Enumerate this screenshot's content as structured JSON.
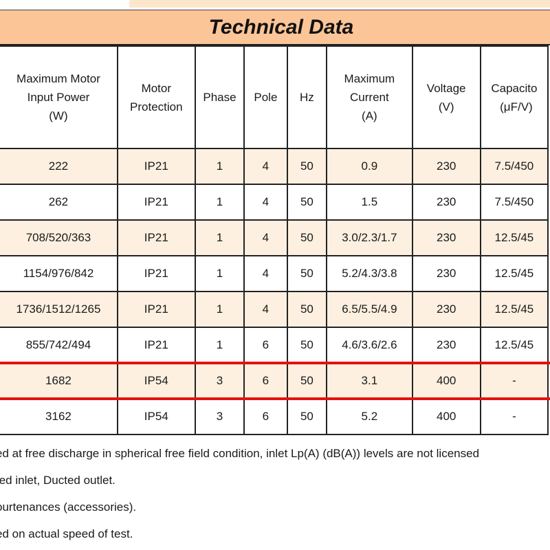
{
  "title": "Technical Data",
  "headers": [
    [
      "Maximum Motor",
      "Input Power",
      "(W)"
    ],
    [
      "Motor",
      "Protection"
    ],
    [
      "Phase"
    ],
    [
      "Pole"
    ],
    [
      "Hz"
    ],
    [
      "Maximum",
      "Current",
      "(A)"
    ],
    [
      "Voltage",
      "(V)"
    ],
    [
      "Capacito",
      "(μF/V)"
    ]
  ],
  "rows": [
    [
      "222",
      "IP21",
      "1",
      "4",
      "50",
      "0.9",
      "230",
      "7.5/450"
    ],
    [
      "262",
      "IP21",
      "1",
      "4",
      "50",
      "1.5",
      "230",
      "7.5/450"
    ],
    [
      "708/520/363",
      "IP21",
      "1",
      "4",
      "50",
      "3.0/2.3/1.7",
      "230",
      "12.5/45"
    ],
    [
      "1154/976/842",
      "IP21",
      "1",
      "4",
      "50",
      "5.2/4.3/3.8",
      "230",
      "12.5/45"
    ],
    [
      "1736/1512/1265",
      "IP21",
      "1",
      "4",
      "50",
      "6.5/5.5/4.9",
      "230",
      "12.5/45"
    ],
    [
      "855/742/494",
      "IP21",
      "1",
      "6",
      "50",
      "4.6/3.6/2.6",
      "230",
      "12.5/45"
    ],
    [
      "1682",
      "IP54",
      "3",
      "6",
      "50",
      "3.1",
      "400",
      "-"
    ],
    [
      "3162",
      "IP54",
      "3",
      "6",
      "50",
      "5.2",
      "400",
      "-"
    ]
  ],
  "highlighted_row_index": 6,
  "colors": {
    "title_bar": "#fbc598",
    "row_shade": "#fdf0e0",
    "highlight_border": "#e6110f"
  },
  "notes": [
    "ed at free discharge in spherical free field condition, inlet Lp(A) (dB(A)) levels are not licensed",
    "ted inlet, Ducted outlet.",
    "ourtenances (accessories).",
    "ed on actual speed of test."
  ]
}
